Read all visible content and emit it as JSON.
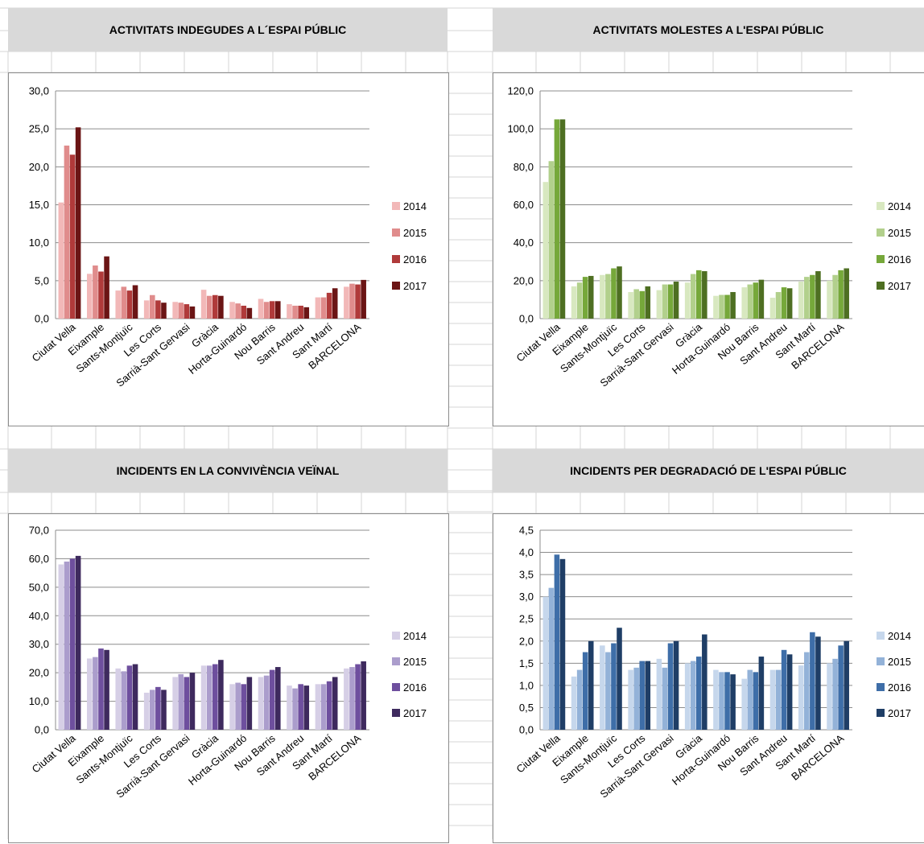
{
  "chart_data": [
    {
      "type": "bar",
      "title": "ACTIVITATS INDEGUDES A L´ESPAI PÚBLIC",
      "categories": [
        "Ciutat Vella",
        "Eixample",
        "Sants-Montjuïc",
        "Les Corts",
        "Sarrià-Sant Gervasi",
        "Gràcia",
        "Horta-Guinardó",
        "Nou Barris",
        "Sant Andreu",
        "Sant Martí",
        "BARCELONA"
      ],
      "series": [
        {
          "name": "2014",
          "color": "#f2b8b8",
          "values": [
            15.3,
            5.9,
            3.7,
            2.4,
            2.2,
            3.8,
            2.2,
            2.6,
            1.9,
            2.8,
            4.2
          ]
        },
        {
          "name": "2015",
          "color": "#e08c8c",
          "values": [
            22.8,
            7.0,
            4.2,
            3.1,
            2.1,
            3.0,
            2.0,
            2.2,
            1.7,
            2.8,
            4.6
          ]
        },
        {
          "name": "2016",
          "color": "#b03a3a",
          "values": [
            21.6,
            6.2,
            3.7,
            2.4,
            1.9,
            3.1,
            1.7,
            2.3,
            1.7,
            3.4,
            4.5
          ]
        },
        {
          "name": "2017",
          "color": "#6b1515",
          "values": [
            25.2,
            8.2,
            4.4,
            2.1,
            1.6,
            3.0,
            1.4,
            2.3,
            1.5,
            4.0,
            5.1
          ]
        }
      ],
      "ylim": [
        0,
        30
      ],
      "yticks": [
        "0,0",
        "5,0",
        "10,0",
        "15,0",
        "20,0",
        "25,0",
        "30,0"
      ],
      "ystep": 5
    },
    {
      "type": "bar",
      "title": "ACTIVITATS MOLESTES A L'ESPAI PÚBLIC",
      "categories": [
        "Ciutat Vella",
        "Eixample",
        "Sants-Montjuïc",
        "Les Corts",
        "Sarrià-Sant Gervasi",
        "Gràcia",
        "Horta-Guinardó",
        "Nou Barris",
        "Sant Andreu",
        "Sant Martí",
        "BARCELONA"
      ],
      "series": [
        {
          "name": "2014",
          "color": "#d8e8c0",
          "values": [
            72.0,
            17.0,
            23.0,
            14.0,
            15.0,
            19.0,
            12.0,
            16.5,
            11.0,
            19.5,
            20.0
          ]
        },
        {
          "name": "2015",
          "color": "#b2d08c",
          "values": [
            83.0,
            19.0,
            23.5,
            15.5,
            18.0,
            23.5,
            12.5,
            18.0,
            14.0,
            22.0,
            23.0
          ]
        },
        {
          "name": "2016",
          "color": "#76a83a",
          "values": [
            105.0,
            22.0,
            26.5,
            14.5,
            18.0,
            25.5,
            12.5,
            19.0,
            16.5,
            23.0,
            25.5
          ]
        },
        {
          "name": "2017",
          "color": "#4e6f22",
          "values": [
            105.0,
            22.5,
            27.5,
            17.0,
            19.5,
            25.0,
            14.0,
            20.5,
            16.0,
            25.0,
            26.5
          ]
        }
      ],
      "ylim": [
        0,
        120
      ],
      "yticks": [
        "0,0",
        "20,0",
        "40,0",
        "60,0",
        "80,0",
        "100,0",
        "120,0"
      ],
      "ystep": 20
    },
    {
      "type": "bar",
      "title": "INCIDENTS EN LA CONVIVÈNCIA VEÏNAL",
      "categories": [
        "Ciutat Vella",
        "Eixample",
        "Sants-Montjuïc",
        "Les Corts",
        "Sarrià-Sant Gervasi",
        "Gràcia",
        "Horta-Guinardó",
        "Nou Barris",
        "Sant Andreu",
        "Sant Martí",
        "BARCELONA"
      ],
      "series": [
        {
          "name": "2014",
          "color": "#d6cfe6",
          "values": [
            58.0,
            25.0,
            21.5,
            13.0,
            18.5,
            22.5,
            16.0,
            18.5,
            15.5,
            16.0,
            21.5
          ]
        },
        {
          "name": "2015",
          "color": "#ab9dcc",
          "values": [
            59.0,
            25.5,
            20.5,
            14.0,
            19.5,
            22.5,
            16.5,
            19.0,
            14.5,
            16.0,
            22.0
          ]
        },
        {
          "name": "2016",
          "color": "#6e4f9e",
          "values": [
            60.0,
            28.5,
            22.5,
            15.0,
            18.5,
            23.0,
            16.0,
            21.0,
            16.0,
            17.0,
            23.0
          ]
        },
        {
          "name": "2017",
          "color": "#3e2a5e",
          "values": [
            61.0,
            28.0,
            23.0,
            14.0,
            20.0,
            24.5,
            18.5,
            22.0,
            15.5,
            18.5,
            24.0
          ]
        }
      ],
      "ylim": [
        0,
        70
      ],
      "yticks": [
        "0,0",
        "10,0",
        "20,0",
        "30,0",
        "40,0",
        "50,0",
        "60,0",
        "70,0"
      ],
      "ystep": 10
    },
    {
      "type": "bar",
      "title": "INCIDENTS PER DEGRADACIÓ DE L'ESPAI PÚBLIC",
      "categories": [
        "Ciutat Vella",
        "Eixample",
        "Sants-Montjuïc",
        "Les Corts",
        "Sarrià-Sant Gervasi",
        "Gràcia",
        "Horta-Guinardó",
        "Nou Barris",
        "Sant Andreu",
        "Sant Martí",
        "BARCELONA"
      ],
      "series": [
        {
          "name": "2014",
          "color": "#c6d7ec",
          "values": [
            3.0,
            1.2,
            1.9,
            1.35,
            1.6,
            1.5,
            1.35,
            1.15,
            1.35,
            1.45,
            1.5
          ]
        },
        {
          "name": "2015",
          "color": "#93b2d8",
          "values": [
            3.2,
            1.35,
            1.75,
            1.4,
            1.4,
            1.55,
            1.3,
            1.35,
            1.35,
            1.75,
            1.6
          ]
        },
        {
          "name": "2016",
          "color": "#3e6ea8",
          "values": [
            3.95,
            1.75,
            1.95,
            1.55,
            1.95,
            1.65,
            1.3,
            1.3,
            1.8,
            2.2,
            1.9
          ]
        },
        {
          "name": "2017",
          "color": "#1f3e66",
          "values": [
            3.85,
            2.0,
            2.3,
            1.55,
            2.0,
            2.15,
            1.25,
            1.65,
            1.7,
            2.1,
            2.0
          ]
        }
      ],
      "ylim": [
        0,
        4.5
      ],
      "yticks": [
        "0,0",
        "0,5",
        "1,0",
        "1,5",
        "2,0",
        "2,5",
        "3,0",
        "3,5",
        "4,0",
        "4,5"
      ],
      "ystep": 0.5
    }
  ]
}
